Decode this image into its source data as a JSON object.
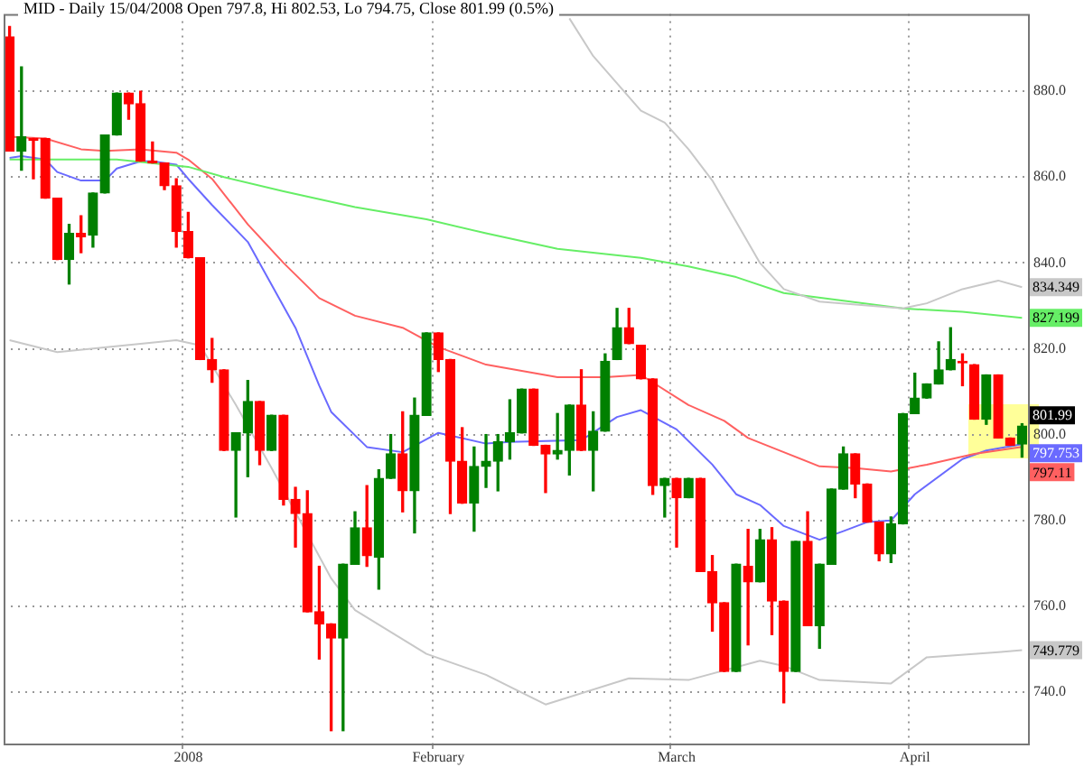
{
  "chart_data": {
    "type": "candlestick",
    "title": "MID - Daily 15/04/2008 Open 797.8, Hi 802.53, Lo 794.75, Close 801.99 (0.5%)",
    "categories": [
      null,
      null,
      null,
      null,
      null,
      null,
      null,
      null,
      null,
      null,
      null,
      null,
      null,
      null,
      null,
      "2008",
      null,
      null,
      null,
      null,
      null,
      null,
      null,
      null,
      null,
      null,
      null,
      null,
      null,
      null,
      null,
      null,
      null,
      null,
      null,
      null,
      "February",
      null,
      null,
      null,
      null,
      null,
      null,
      null,
      null,
      null,
      null,
      null,
      null,
      null,
      null,
      null,
      null,
      null,
      null,
      null,
      "March",
      null,
      null,
      null,
      null,
      null,
      null,
      null,
      null,
      null,
      null,
      null,
      null,
      null,
      null,
      null,
      null,
      null,
      null,
      null,
      "April",
      null,
      null,
      null,
      null,
      null,
      null,
      null,
      null,
      null
    ],
    "ohlc": [
      [
        892.7,
        895.1,
        866.1,
        866.1
      ],
      [
        866.1,
        885.7,
        861.6,
        869.4
      ],
      [
        869,
        869,
        859.6,
        868.6
      ],
      [
        869,
        869,
        855.1,
        855.1
      ],
      [
        855.1,
        855.1,
        840.8,
        840.8
      ],
      [
        840.8,
        849,
        835.1,
        846.9
      ],
      [
        846.9,
        851,
        842.4,
        846.1
      ],
      [
        846.5,
        856.3,
        843.7,
        856.3
      ],
      [
        856.3,
        869.8,
        856.3,
        869.8
      ],
      [
        869.8,
        879.6,
        869.8,
        879.6
      ],
      [
        879.6,
        879.6,
        873.5,
        877.1
      ],
      [
        877.1,
        880,
        863.7,
        863.7
      ],
      [
        863.7,
        868.2,
        863.3,
        863.3
      ],
      [
        863.3,
        863.3,
        857.1,
        858
      ],
      [
        858,
        859.6,
        843.7,
        847.3
      ],
      [
        847.3,
        851.8,
        841.2,
        841.2
      ],
      [
        841.2,
        841.2,
        817.5,
        817.5
      ],
      [
        817.5,
        822.4,
        812.2,
        815.1
      ],
      [
        815.1,
        815.1,
        796.3,
        796.3
      ],
      [
        796.3,
        800.4,
        780.8,
        800.4
      ],
      [
        800.4,
        812.6,
        790.2,
        807.7
      ],
      [
        807.7,
        807.7,
        793,
        796.3
      ],
      [
        796.3,
        804.5,
        796.3,
        804.5
      ],
      [
        804.5,
        804.5,
        783.6,
        784.9
      ],
      [
        784.9,
        787.7,
        773.8,
        781.6
      ],
      [
        781.6,
        786.9,
        758.7,
        758.7
      ],
      [
        758.7,
        769.3,
        747.7,
        755.9
      ],
      [
        755.9,
        755.9,
        731,
        752.6
      ],
      [
        752.6,
        769.8,
        731,
        769.8
      ],
      [
        769.8,
        782,
        769.8,
        778.3
      ],
      [
        778.3,
        788.1,
        769.3,
        771.8
      ],
      [
        771.4,
        791.8,
        764,
        789.8
      ],
      [
        789.8,
        800,
        789.8,
        795.5
      ],
      [
        795.5,
        805.3,
        782,
        786.9
      ],
      [
        786.9,
        808.5,
        777.1,
        804.5
      ],
      [
        804.5,
        823.7,
        804.5,
        823.7
      ],
      [
        823.7,
        823.7,
        814.7,
        817.5
      ],
      [
        817.5,
        817.5,
        781.6,
        793.8
      ],
      [
        793.8,
        801.6,
        784,
        784
      ],
      [
        784,
        797.1,
        777.5,
        792.6
      ],
      [
        792.6,
        800,
        787.7,
        793.8
      ],
      [
        793.8,
        800,
        786.9,
        798.3
      ],
      [
        798.3,
        808.1,
        794.3,
        800.4
      ],
      [
        800.4,
        810.6,
        800.4,
        810.6
      ],
      [
        810.6,
        810.6,
        797.5,
        797.5
      ],
      [
        797.5,
        797.5,
        786.5,
        795.5
      ],
      [
        795.5,
        804.9,
        794.3,
        796.3
      ],
      [
        796.3,
        806.9,
        790.6,
        806.9
      ],
      [
        806.9,
        815.1,
        796.3,
        796.3
      ],
      [
        796.3,
        805.3,
        786.9,
        800.8
      ],
      [
        800.8,
        818.8,
        800.8,
        817.1
      ],
      [
        817.5,
        829.4,
        817.5,
        824.9
      ],
      [
        824.9,
        829.4,
        821.2,
        821.2
      ],
      [
        820.8,
        820.8,
        813,
        813
      ],
      [
        813,
        813,
        786.1,
        788.1
      ],
      [
        788.1,
        789.8,
        780.8,
        789.8
      ],
      [
        789.8,
        789.8,
        773.8,
        785.3
      ],
      [
        785.3,
        789.8,
        785.3,
        789.8
      ],
      [
        789.8,
        789.8,
        768.1,
        768.1
      ],
      [
        768.1,
        771.8,
        754.2,
        760.8
      ],
      [
        760.8,
        760.8,
        744.8,
        744.8
      ],
      [
        744.8,
        769.8,
        744.8,
        769.8
      ],
      [
        769.3,
        777.9,
        751,
        765.7
      ],
      [
        765.7,
        777.9,
        765.7,
        775.5
      ],
      [
        775.5,
        778.3,
        753.4,
        761.2
      ],
      [
        761.2,
        761.2,
        737.5,
        744.8
      ],
      [
        744.8,
        775.1,
        744.8,
        775.1
      ],
      [
        775.1,
        782,
        755.5,
        755.5
      ],
      [
        755.5,
        769.8,
        750.2,
        769.8
      ],
      [
        769.8,
        787.3,
        769.8,
        787.3
      ],
      [
        787.3,
        797.1,
        787.3,
        795.5
      ],
      [
        795.5,
        795.5,
        785.3,
        788.5
      ],
      [
        788.5,
        788.5,
        779.6,
        779.6
      ],
      [
        779.6,
        779.6,
        770.6,
        772.2
      ],
      [
        772.2,
        780.8,
        770.2,
        779.2
      ],
      [
        779.2,
        804.9,
        779.2,
        804.9
      ],
      [
        804.9,
        814.3,
        804.9,
        808.5
      ],
      [
        808.5,
        811.8,
        808.5,
        811.8
      ],
      [
        811.8,
        821.6,
        811.8,
        815.1
      ],
      [
        815.1,
        824.9,
        815.1,
        817.5
      ],
      [
        817.1,
        818.8,
        811.4,
        816.7
      ],
      [
        816.3,
        816.3,
        803.6,
        803.6
      ],
      [
        803.6,
        813.9,
        802.4,
        813.9
      ],
      [
        813.9,
        813.9,
        799.2,
        799.2
      ],
      [
        799.2,
        799.2,
        797.5,
        797.5
      ],
      [
        797.8,
        802.53,
        794.75,
        801.99
      ]
    ],
    "colors": [
      "#ff0000",
      "#008000",
      "#ff0000",
      "#ff0000",
      "#ff0000",
      "#008000",
      "#ff0000",
      "#008000",
      "#008000",
      "#008000",
      "#ff0000",
      "#ff0000",
      "#ff0000",
      "#ff0000",
      "#ff0000",
      "#ff0000",
      "#ff0000",
      "#ff0000",
      "#ff0000",
      "#008000",
      "#008000",
      "#ff0000",
      "#008000",
      "#ff0000",
      "#ff0000",
      "#ff0000",
      "#ff0000",
      "#ff0000",
      "#008000",
      "#008000",
      "#ff0000",
      "#008000",
      "#008000",
      "#ff0000",
      "#008000",
      "#008000",
      "#ff0000",
      "#ff0000",
      "#ff0000",
      "#008000",
      "#008000",
      "#008000",
      "#008000",
      "#008000",
      "#ff0000",
      "#ff0000",
      "#008000",
      "#008000",
      "#ff0000",
      "#008000",
      "#008000",
      "#008000",
      "#ff0000",
      "#ff0000",
      "#ff0000",
      "#008000",
      "#ff0000",
      "#008000",
      "#ff0000",
      "#ff0000",
      "#ff0000",
      "#008000",
      "#ff0000",
      "#008000",
      "#ff0000",
      "#ff0000",
      "#008000",
      "#ff0000",
      "#008000",
      "#008000",
      "#008000",
      "#ff0000",
      "#ff0000",
      "#ff0000",
      "#008000",
      "#008000",
      "#008000",
      "#008000",
      "#008000",
      "#008000",
      "#ff0000",
      "#ff0000",
      "#008000",
      "#ff0000",
      "#ff0000",
      "#008000"
    ],
    "series": [
      {
        "type": "line",
        "color": "#c8c8c8",
        "values": [
          null,
          null,
          null,
          null,
          null,
          null,
          null,
          null,
          null,
          null,
          null,
          null,
          null,
          null,
          null,
          null,
          null,
          null,
          null,
          null,
          null,
          null,
          null,
          null,
          null,
          null,
          null,
          null,
          null,
          null,
          null,
          null,
          null,
          null,
          null,
          null,
          null,
          null,
          null,
          null,
          null,
          null,
          null,
          null,
          null,
          null,
          null,
          897,
          null,
          888.2,
          null,
          null,
          null,
          875.5,
          null,
          872.7,
          null,
          866.5,
          null,
          859.2,
          null,
          null,
          null,
          840,
          null,
          833.9,
          null,
          null,
          831,
          null,
          null,
          null,
          null,
          null,
          null,
          829.4,
          null,
          830.6,
          null,
          null,
          833.9,
          null,
          null,
          835.9,
          null,
          834.349
        ],
        "value_labels": [
          null,
          null,
          null,
          null,
          null,
          null,
          null,
          null,
          null,
          null,
          null,
          null,
          null,
          null,
          null,
          null,
          null,
          null,
          null,
          null,
          null,
          null,
          null,
          null,
          null,
          null,
          null,
          null,
          null,
          null,
          null,
          null,
          null,
          null,
          null,
          null,
          null,
          null,
          null,
          null,
          null,
          null,
          null,
          null,
          null,
          null,
          null,
          null,
          null,
          null,
          null,
          null,
          null,
          null,
          null,
          null,
          null,
          null,
          null,
          null,
          null,
          null,
          null,
          null,
          null,
          null,
          null,
          null,
          null,
          null,
          null,
          null,
          null,
          null,
          null,
          null,
          null,
          null,
          null,
          null,
          null,
          null,
          null,
          null,
          null,
          "834.349"
        ]
      },
      {
        "type": "line",
        "color": "#66ee66",
        "values": [
          864.1,
          null,
          null,
          null,
          null,
          null,
          null,
          null,
          null,
          864.1,
          null,
          null,
          null,
          null,
          null,
          862.4,
          null,
          null,
          860,
          null,
          null,
          null,
          null,
          856.7,
          null,
          null,
          null,
          null,
          null,
          853,
          null,
          null,
          null,
          null,
          null,
          850.2,
          null,
          null,
          null,
          null,
          846.9,
          null,
          null,
          null,
          null,
          null,
          843.3,
          null,
          null,
          null,
          null,
          null,
          null,
          841.2,
          null,
          null,
          null,
          839.2,
          null,
          null,
          null,
          836.7,
          null,
          null,
          null,
          833,
          null,
          null,
          null,
          null,
          null,
          null,
          null,
          null,
          null,
          829.4,
          null,
          null,
          null,
          null,
          828.6,
          null,
          null,
          null,
          null,
          827.199
        ],
        "value_labels": [
          null,
          null,
          null,
          null,
          null,
          null,
          null,
          null,
          null,
          null,
          null,
          null,
          null,
          null,
          null,
          null,
          null,
          null,
          null,
          null,
          null,
          null,
          null,
          null,
          null,
          null,
          null,
          null,
          null,
          null,
          null,
          null,
          null,
          null,
          null,
          null,
          null,
          null,
          null,
          null,
          null,
          null,
          null,
          null,
          null,
          null,
          null,
          null,
          null,
          null,
          null,
          null,
          null,
          null,
          null,
          null,
          null,
          null,
          null,
          null,
          null,
          null,
          null,
          null,
          null,
          null,
          null,
          null,
          null,
          null,
          null,
          null,
          null,
          null,
          null,
          null,
          null,
          null,
          null,
          null,
          null,
          null,
          null,
          null,
          null,
          "827.199"
        ]
      },
      {
        "type": "line",
        "color": "#ff6060",
        "values": [
          869.4,
          null,
          null,
          869,
          null,
          null,
          866.5,
          null,
          866.1,
          null,
          null,
          866.5,
          null,
          null,
          865.7,
          864.1,
          null,
          859.6,
          null,
          null,
          849,
          null,
          null,
          840,
          null,
          null,
          831.8,
          null,
          null,
          827.7,
          null,
          null,
          null,
          824.9,
          null,
          null,
          820.4,
          null,
          null,
          null,
          816.3,
          null,
          null,
          null,
          null,
          null,
          813.4,
          null,
          null,
          null,
          813.4,
          null,
          null,
          813.9,
          null,
          null,
          null,
          806.9,
          null,
          null,
          803.2,
          null,
          799.2,
          null,
          null,
          795.9,
          null,
          null,
          792.6,
          null,
          null,
          792.2,
          null,
          null,
          791.4,
          null,
          null,
          793,
          null,
          null,
          null,
          795.5,
          null,
          null,
          null,
          797.11
        ],
        "value_labels": [
          null,
          null,
          null,
          null,
          null,
          null,
          null,
          null,
          null,
          null,
          null,
          null,
          null,
          null,
          null,
          null,
          null,
          null,
          null,
          null,
          null,
          null,
          null,
          null,
          null,
          null,
          null,
          null,
          null,
          null,
          null,
          null,
          null,
          null,
          null,
          null,
          null,
          null,
          null,
          null,
          null,
          null,
          null,
          null,
          null,
          null,
          null,
          null,
          null,
          null,
          null,
          null,
          null,
          null,
          null,
          null,
          null,
          null,
          null,
          null,
          null,
          null,
          null,
          null,
          null,
          null,
          null,
          null,
          null,
          null,
          null,
          null,
          null,
          null,
          null,
          null,
          null,
          null,
          null,
          null,
          null,
          null,
          null,
          null,
          null,
          "797.11"
        ]
      },
      {
        "type": "line",
        "color": "#6a6aff",
        "values": [
          864.5,
          864.9,
          null,
          864.1,
          861.2,
          null,
          859.2,
          null,
          859.2,
          862,
          null,
          863.7,
          863.7,
          null,
          862.9,
          859.6,
          null,
          853.5,
          null,
          null,
          844.9,
          null,
          null,
          null,
          824.9,
          null,
          811.4,
          805.3,
          null,
          null,
          797.1,
          null,
          null,
          795.9,
          null,
          null,
          800.4,
          null,
          null,
          null,
          797.9,
          null,
          798.3,
          null,
          null,
          null,
          null,
          null,
          798.7,
          null,
          null,
          804.1,
          null,
          805.7,
          null,
          null,
          801.2,
          null,
          null,
          793,
          null,
          786.1,
          null,
          783.6,
          null,
          778.7,
          null,
          null,
          775.5,
          null,
          777.5,
          null,
          779.6,
          null,
          780,
          null,
          786.1,
          null,
          null,
          null,
          794.3,
          null,
          796.3,
          null,
          null,
          797.753
        ],
        "value_labels": [
          null,
          null,
          null,
          null,
          null,
          null,
          null,
          null,
          null,
          null,
          null,
          null,
          null,
          null,
          null,
          null,
          null,
          null,
          null,
          null,
          null,
          null,
          null,
          null,
          null,
          null,
          null,
          null,
          null,
          null,
          null,
          null,
          null,
          null,
          null,
          null,
          null,
          null,
          null,
          null,
          null,
          null,
          null,
          null,
          null,
          null,
          null,
          null,
          null,
          null,
          null,
          null,
          null,
          null,
          null,
          null,
          null,
          null,
          null,
          null,
          null,
          null,
          null,
          null,
          null,
          null,
          null,
          null,
          null,
          null,
          null,
          null,
          null,
          null,
          null,
          null,
          null,
          null,
          null,
          null,
          null,
          null,
          null,
          null,
          null,
          "797.753"
        ]
      },
      {
        "type": "line",
        "color": "#c8c8c8",
        "values": [
          822,
          null,
          null,
          null,
          819.2,
          null,
          null,
          null,
          null,
          null,
          null,
          null,
          null,
          null,
          822,
          null,
          820.8,
          null,
          null,
          806.9,
          null,
          null,
          792.2,
          null,
          null,
          null,
          null,
          766.5,
          null,
          759.1,
          null,
          null,
          null,
          null,
          null,
          748.9,
          null,
          null,
          null,
          null,
          744,
          null,
          null,
          null,
          null,
          737.1,
          null,
          null,
          null,
          null,
          null,
          null,
          743.2,
          null,
          null,
          null,
          null,
          742.8,
          null,
          null,
          null,
          null,
          null,
          747.3,
          null,
          746.1,
          null,
          null,
          742.8,
          null,
          null,
          null,
          null,
          null,
          742,
          null,
          null,
          748.1,
          null,
          null,
          null,
          null,
          null,
          749.3,
          null,
          749.779
        ],
        "value_labels": [
          null,
          null,
          null,
          null,
          null,
          null,
          null,
          null,
          null,
          null,
          null,
          null,
          null,
          null,
          null,
          null,
          null,
          null,
          null,
          null,
          null,
          null,
          null,
          null,
          null,
          null,
          null,
          null,
          null,
          null,
          null,
          null,
          null,
          null,
          null,
          null,
          null,
          null,
          null,
          null,
          null,
          null,
          null,
          null,
          null,
          null,
          null,
          null,
          null,
          null,
          null,
          null,
          null,
          null,
          null,
          null,
          null,
          null,
          null,
          null,
          null,
          null,
          null,
          null,
          null,
          null,
          null,
          null,
          null,
          null,
          null,
          null,
          null,
          null,
          null,
          null,
          null,
          null,
          null,
          null,
          null,
          null,
          null,
          null,
          null,
          "749.779"
        ]
      }
    ],
    "annotations": [
      "801.99"
    ],
    "ylim": [
      728,
      898
    ],
    "yticks": [
      {
        "value": 740,
        "label": "740.0"
      },
      {
        "value": 760,
        "label": "760.0"
      },
      {
        "value": 780,
        "label": "780.0"
      },
      {
        "value": 800,
        "label": "800.0"
      },
      {
        "value": 820,
        "label": "820.0"
      },
      {
        "value": 840,
        "label": "840.0"
      },
      {
        "value": 860,
        "label": "860.0"
      },
      {
        "value": 880,
        "label": "880.0"
      }
    ],
    "grid": true
  }
}
